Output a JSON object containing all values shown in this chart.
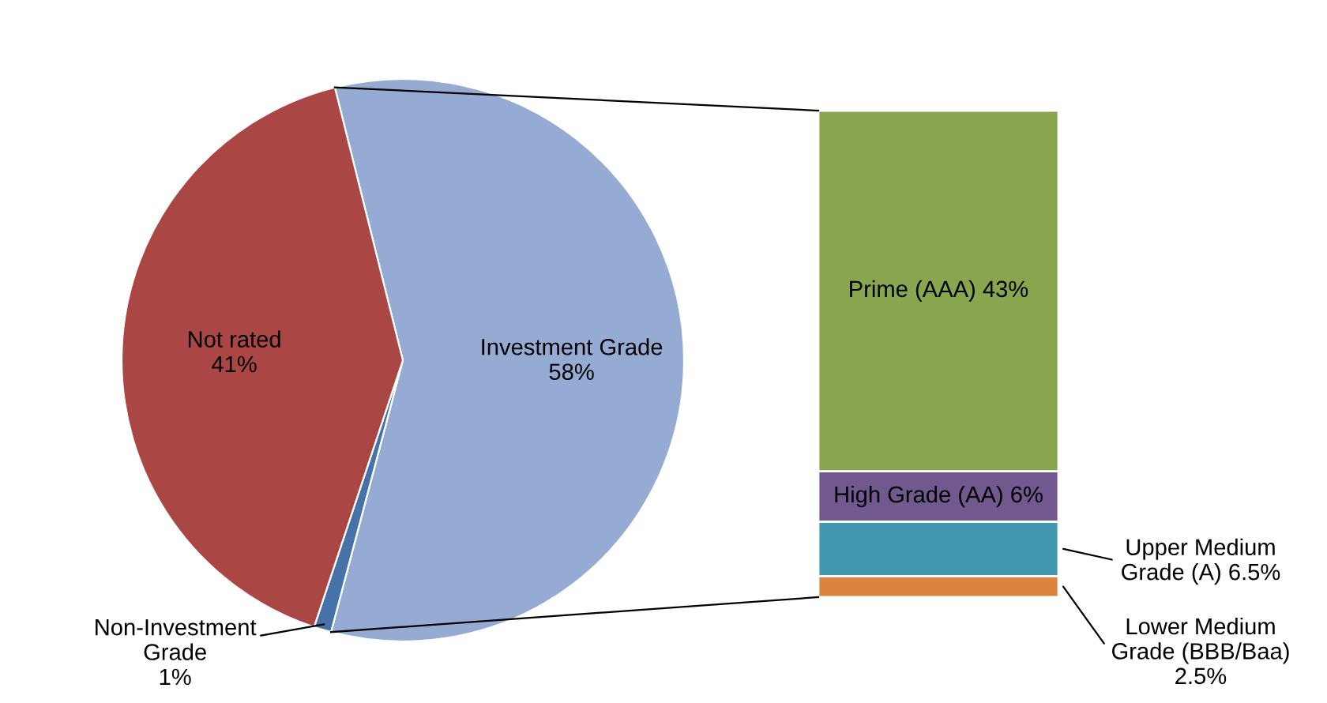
{
  "chart_data": [
    {
      "type": "pie",
      "categories": [
        "Investment Grade",
        "Non-Investment\nGrade",
        "Not rated"
      ],
      "values": [
        58,
        1,
        41
      ],
      "value_labels": [
        "58%",
        "1%",
        "41%"
      ],
      "colors": [
        "#95abd4",
        "#4572a7",
        "#aa4643"
      ]
    },
    {
      "type": "bar",
      "stacked": true,
      "categories": [
        null
      ],
      "series": [
        {
          "color": "#db843d",
          "values": [
            2.5
          ],
          "value_labels": [
            "Lower Medium\nGrade (BBB/Baa)\n2.5%"
          ]
        },
        {
          "color": "#4198af",
          "values": [
            6.5
          ],
          "value_labels": [
            "Upper Medium\nGrade (A) 6.5%"
          ]
        },
        {
          "color": "#71588f",
          "values": [
            6
          ],
          "value_labels": [
            "High Grade (AA) 6%"
          ]
        },
        {
          "color": "#89a54e",
          "values": [
            43
          ],
          "value_labels": [
            "Prime (AAA) 43%"
          ]
        }
      ]
    }
  ]
}
